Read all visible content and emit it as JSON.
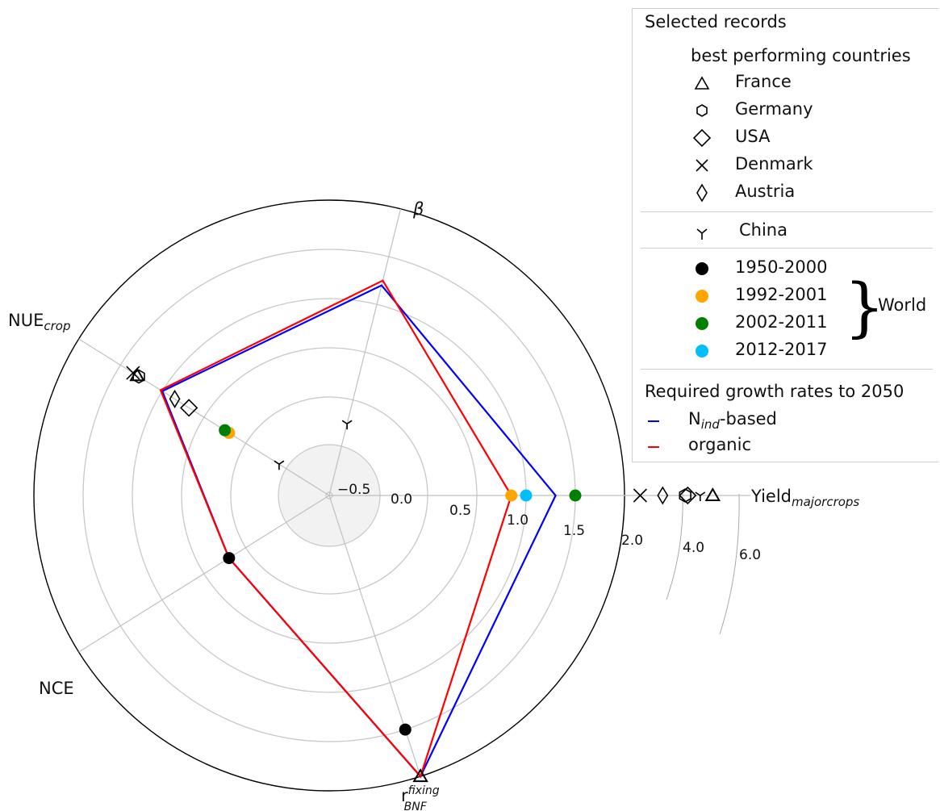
{
  "chart_data": {
    "type": "radar",
    "axes": [
      {
        "id": "beta",
        "label": "β"
      },
      {
        "id": "nue",
        "label": "NUE",
        "label_sub": "crop"
      },
      {
        "id": "nce",
        "label": "NCE"
      },
      {
        "id": "rbnf",
        "label": "r",
        "label_sub": "BNF",
        "label_sup": "fixing"
      },
      {
        "id": "yield",
        "label": "Yield",
        "label_sub": "majorcrops"
      }
    ],
    "radial_ticks": [
      "−0.5",
      "0.0",
      "0.5",
      "1.0",
      "1.5",
      "2.0"
    ],
    "broken_axis_ticks": [
      "4.0",
      "6.0"
    ],
    "series": [
      {
        "name": "N_ind-based",
        "color": "#0000ff",
        "values": {
          "beta": 1.2,
          "nue": 1.0,
          "nce": 0.2,
          "rbnf": 2.0,
          "yield": 1.3
        }
      },
      {
        "name": "organic",
        "color": "#ff0000",
        "values": {
          "beta": 1.25,
          "nue": 1.02,
          "nce": 0.2,
          "rbnf": 2.0,
          "yield": 0.85
        }
      }
    ],
    "records": [
      {
        "country": "China",
        "marker": "tri",
        "values": {
          "beta": -0.25,
          "nue": -0.4,
          "yield": 4.8
        }
      },
      {
        "country": "France",
        "marker": "triangle",
        "values": {
          "nue": 1.3,
          "rbnf": 2.0,
          "yield": 5.3
        }
      },
      {
        "country": "Germany",
        "marker": "hexagon",
        "values": {
          "nue": 1.28,
          "yield": 4.2
        }
      },
      {
        "country": "USA",
        "marker": "diamond",
        "values": {
          "nue": 0.68,
          "yield": 4.3
        }
      },
      {
        "country": "Denmark",
        "marker": "x",
        "values": {
          "nue": 1.35,
          "yield": 2.4
        }
      },
      {
        "country": "Austria",
        "marker": "thin-diamond",
        "values": {
          "nue": 0.85,
          "yield": 3.3
        }
      },
      {
        "country": "1950-2000",
        "marker": "dot",
        "color": "#000000",
        "values": {
          "nce": 0.2,
          "rbnf": 1.5
        }
      },
      {
        "country": "1992-2001",
        "marker": "dot",
        "color": "#ffa500",
        "values": {
          "nue": 0.2,
          "yield": 0.85
        }
      },
      {
        "country": "2002-2011",
        "marker": "dot",
        "color": "#008000",
        "values": {
          "nue": 0.25,
          "yield": 1.5
        }
      },
      {
        "country": "2012-2017",
        "marker": "dot",
        "color": "#00bfff",
        "values": {
          "yield": 1.0
        }
      }
    ],
    "grid": true
  },
  "legend": {
    "title": "Selected records",
    "subtitle": "best performing countries",
    "countries": [
      {
        "label": "France",
        "marker": "triangle"
      },
      {
        "label": "Germany",
        "marker": "hexagon"
      },
      {
        "label": "USA",
        "marker": "diamond"
      },
      {
        "label": "Denmark",
        "marker": "x"
      },
      {
        "label": "Austria",
        "marker": "thin-diamond"
      }
    ],
    "china": {
      "label": "China",
      "marker": "tri"
    },
    "periods": [
      {
        "label": "1950-2000",
        "color": "#000000"
      },
      {
        "label": "1992-2001",
        "color": "#ffa500"
      },
      {
        "label": "2002-2011",
        "color": "#008000"
      },
      {
        "label": "2012-2017",
        "color": "#00bfff"
      }
    ],
    "world_label": "World",
    "required_title": "Required growth rates to 2050",
    "required": [
      {
        "label_main": "N",
        "label_sub": "ind",
        "label_rest": "-based",
        "color": "#0000ff"
      },
      {
        "label_main": "organic",
        "label_sub": "",
        "label_rest": "",
        "color": "#ff0000"
      }
    ]
  }
}
